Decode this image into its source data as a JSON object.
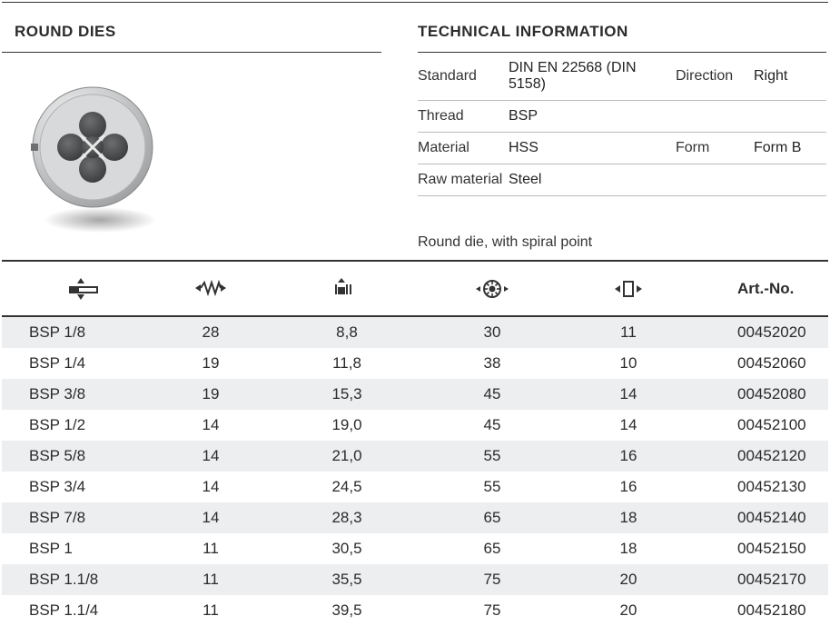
{
  "header": {
    "left_title": "ROUND DIES",
    "right_title": "TECHNICAL INFORMATION"
  },
  "tech": {
    "rows": [
      {
        "l1": "Standard",
        "v1": "DIN EN 22568 (DIN 5158)",
        "l2": "Direction",
        "v2": "Right"
      },
      {
        "l1": "Thread",
        "v1": "BSP",
        "l2": "",
        "v2": ""
      },
      {
        "l1": "Material",
        "v1": "HSS",
        "l2": "Form",
        "v2": "Form B"
      },
      {
        "l1": "Raw material",
        "v1": "Steel",
        "l2": "",
        "v2": ""
      }
    ],
    "note": "Round die, with spiral point"
  },
  "table": {
    "artno_header": "Art.-No.",
    "rows": [
      {
        "size": "BSP 1/8",
        "tpi": "28",
        "d": "8,8",
        "od": "30",
        "th": "11",
        "art": "00452020"
      },
      {
        "size": "BSP 1/4",
        "tpi": "19",
        "d": "11,8",
        "od": "38",
        "th": "10",
        "art": "00452060"
      },
      {
        "size": "BSP 3/8",
        "tpi": "19",
        "d": "15,3",
        "od": "45",
        "th": "14",
        "art": "00452080"
      },
      {
        "size": "BSP 1/2",
        "tpi": "14",
        "d": "19,0",
        "od": "45",
        "th": "14",
        "art": "00452100"
      },
      {
        "size": "BSP 5/8",
        "tpi": "14",
        "d": "21,0",
        "od": "55",
        "th": "16",
        "art": "00452120"
      },
      {
        "size": "BSP 3/4",
        "tpi": "14",
        "d": "24,5",
        "od": "55",
        "th": "16",
        "art": "00452130"
      },
      {
        "size": "BSP 7/8",
        "tpi": "14",
        "d": "28,3",
        "od": "65",
        "th": "18",
        "art": "00452140"
      },
      {
        "size": "BSP 1",
        "tpi": "11",
        "d": "30,5",
        "od": "65",
        "th": "18",
        "art": "00452150"
      },
      {
        "size": "BSP 1.1/8",
        "tpi": "11",
        "d": "35,5",
        "od": "75",
        "th": "20",
        "art": "00452170"
      },
      {
        "size": "BSP 1.1/4",
        "tpi": "11",
        "d": "39,5",
        "od": "75",
        "th": "20",
        "art": "00452180"
      }
    ]
  },
  "colors": {
    "text": "#2b2b2b",
    "rule": "#333333",
    "row_alt": "#eceeef",
    "border_light": "#bbbbbb",
    "die_body": "#c9cbcc",
    "die_highlight": "#eef0f1",
    "die_shadow": "#8e9091"
  }
}
